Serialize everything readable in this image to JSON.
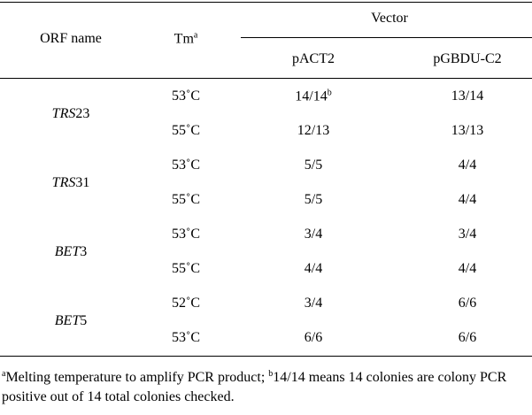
{
  "table": {
    "header": {
      "orf": "ORF name",
      "tm": "Tm",
      "tm_note": "a",
      "vector": "Vector",
      "columns": [
        "pACT2",
        "pGBDU-C2"
      ]
    },
    "groups": [
      {
        "orf_italic": "TRS",
        "orf_number": "23",
        "rows": [
          {
            "tm": "53˚C",
            "pact2": "14/14",
            "pact2_note": "b",
            "pgbdu": "13/14"
          },
          {
            "tm": "55˚C",
            "pact2": "12/13",
            "pgbdu": "13/13"
          }
        ]
      },
      {
        "orf_italic": "TRS",
        "orf_number": "31",
        "rows": [
          {
            "tm": "53˚C",
            "pact2": "5/5",
            "pgbdu": "4/4"
          },
          {
            "tm": "55˚C",
            "pact2": "5/5",
            "pgbdu": "4/4"
          }
        ]
      },
      {
        "orf_italic": "BET",
        "orf_number": "3",
        "rows": [
          {
            "tm": "53˚C",
            "pact2": "3/4",
            "pgbdu": "3/4"
          },
          {
            "tm": "55˚C",
            "pact2": "4/4",
            "pgbdu": "4/4"
          }
        ]
      },
      {
        "orf_italic": "BET",
        "orf_number": "5",
        "rows": [
          {
            "tm": "52˚C",
            "pact2": "3/4",
            "pgbdu": "6/6"
          },
          {
            "tm": "53˚C",
            "pact2": "6/6",
            "pgbdu": "6/6"
          }
        ]
      }
    ]
  },
  "footnote": {
    "mark_a": "a",
    "text_a": "Melting temperature to amplify PCR product;",
    "mark_b": "b",
    "text_b": "14/14 means 14 colonies are colony PCR positive out of 14 total colonies checked."
  }
}
